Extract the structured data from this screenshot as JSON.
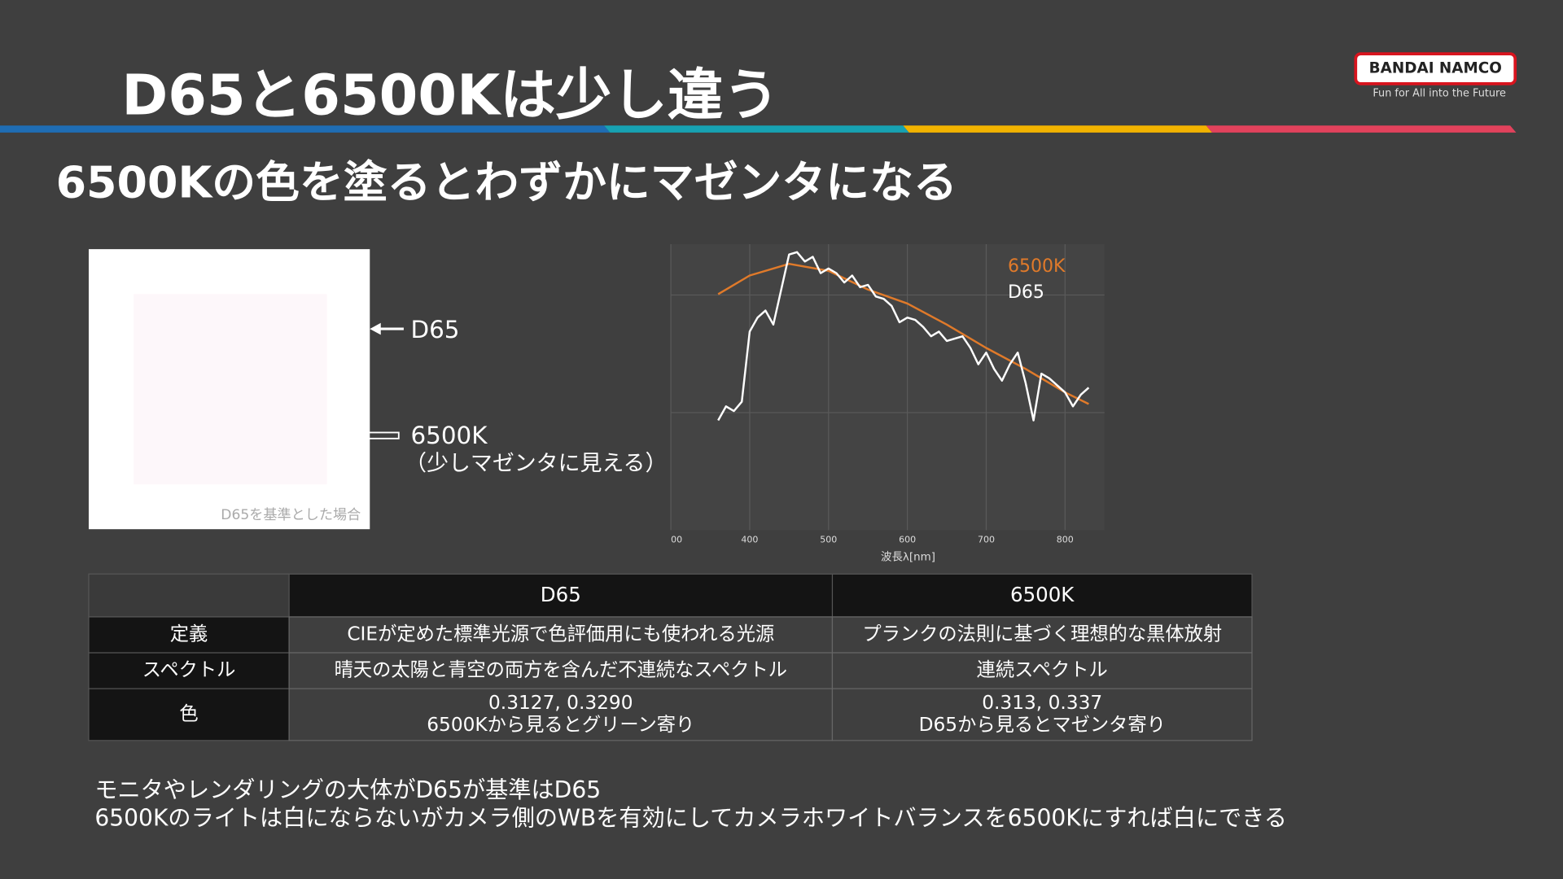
{
  "header": {
    "title": "D65と6500Kは少し違う",
    "logo": "BANDAI NAMCO",
    "tagline": "Fun for All into the Future"
  },
  "subtitle": "6500Kの色を塗るとわずかにマゼンタになる",
  "swatch": {
    "d65_label": "D65",
    "k6500_label": "6500K",
    "k6500_note": "（少しマゼンタに見える）",
    "caption": "D65を基準とした場合"
  },
  "chart_data": {
    "type": "line",
    "x_label": "波長λ[nm]",
    "xlim": [
      300,
      850
    ],
    "xticks": [
      {
        "value": 300,
        "label": "00"
      },
      400,
      500,
      600,
      700,
      800
    ],
    "grid": true,
    "series": [
      {
        "name": "6500K",
        "color": "#e07a2a",
        "x": [
          360,
          400,
          450,
          500,
          550,
          600,
          650,
          700,
          750,
          800,
          830
        ],
        "values": [
          101,
          109,
          114,
          111,
          103,
          97,
          88,
          78,
          69,
          59,
          54
        ]
      },
      {
        "name": "D65",
        "color": "#ffffff",
        "x": [
          360,
          370,
          380,
          390,
          400,
          410,
          420,
          430,
          440,
          450,
          460,
          470,
          480,
          490,
          500,
          510,
          520,
          530,
          540,
          550,
          560,
          570,
          580,
          590,
          600,
          610,
          620,
          630,
          640,
          650,
          660,
          670,
          680,
          690,
          700,
          710,
          720,
          730,
          740,
          750,
          760,
          770,
          780,
          790,
          800,
          810,
          820,
          830
        ],
        "values": [
          47,
          53,
          51,
          55,
          85,
          91,
          94,
          88,
          103,
          118,
          119,
          115,
          117,
          110,
          112,
          110,
          106,
          109,
          104,
          105,
          100,
          99,
          96,
          89,
          91,
          90,
          87,
          83,
          85,
          81,
          82,
          83,
          78,
          71,
          76,
          69,
          64,
          71,
          76,
          63,
          47,
          67,
          65,
          62,
          59,
          53,
          58,
          61
        ]
      }
    ]
  },
  "table": {
    "columns": [
      "D65",
      "6500K"
    ],
    "rows": [
      {
        "label": "定義",
        "cells": [
          [
            "CIEが定めた標準光源で色評価用にも使われる光源"
          ],
          [
            "プランクの法則に基づく理想的な黒体放射"
          ]
        ]
      },
      {
        "label": "スペクトル",
        "cells": [
          [
            "晴天の太陽と青空の両方を含んだ不連続なスペクトル"
          ],
          [
            "連続スペクトル"
          ]
        ]
      },
      {
        "label": "色",
        "cells": [
          [
            "0.3127, 0.3290",
            "6500Kから見るとグリーン寄り"
          ],
          [
            "0.313, 0.337",
            "D65から見るとマゼンタ寄り"
          ]
        ]
      }
    ]
  },
  "footer": [
    "モニタやレンダリングの大体がD65が基準はD65",
    "6500Kのライトは白にならないがカメラ側のWBを有効にしてカメラホワイトバランスを6500Kにすれば白にできる"
  ]
}
